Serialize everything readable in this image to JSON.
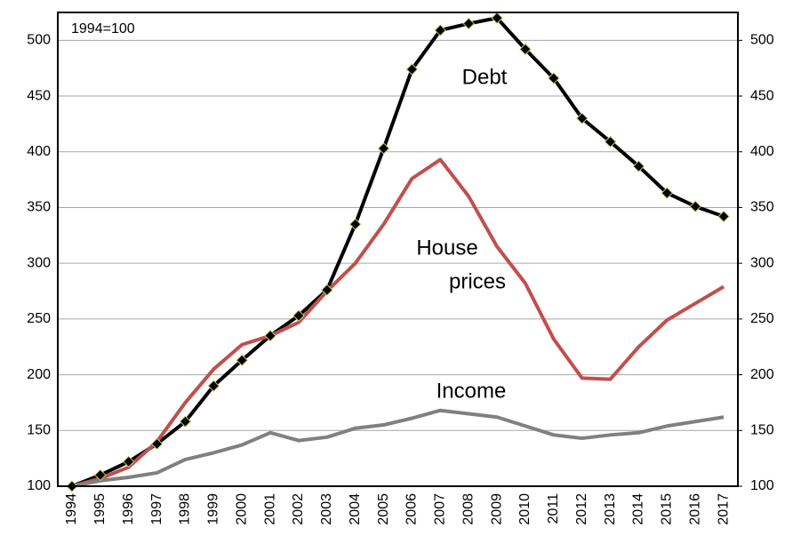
{
  "chart_data": {
    "type": "line",
    "categories": [
      "1994",
      "1995",
      "1996",
      "1997",
      "1998",
      "1999",
      "2000",
      "2001",
      "2002",
      "2003",
      "2004",
      "2005",
      "2006",
      "2007",
      "2008",
      "2009",
      "2010",
      "2011",
      "2012",
      "2013",
      "2014",
      "2015",
      "2016",
      "2017"
    ],
    "series": [
      {
        "name": "Debt",
        "color": "#000000",
        "marker": "diamond",
        "values": [
          100,
          110,
          122,
          138,
          158,
          190,
          213,
          235,
          253,
          276,
          335,
          403,
          474,
          509,
          515,
          520,
          492,
          466,
          430,
          409,
          387,
          363,
          351,
          342
        ]
      },
      {
        "name": "House prices",
        "color": "#c0504d",
        "values": [
          100,
          107,
          117,
          140,
          175,
          205,
          227,
          235,
          247,
          275,
          300,
          335,
          376,
          393,
          360,
          315,
          282,
          232,
          197,
          196,
          225,
          249,
          264,
          279
        ]
      },
      {
        "name": "Income",
        "color": "#808080",
        "values": [
          100,
          105,
          108,
          112,
          124,
          130,
          137,
          148,
          141,
          144,
          152,
          155,
          161,
          168,
          165,
          162,
          154,
          146,
          143,
          146,
          148,
          154,
          158,
          162
        ]
      }
    ],
    "ylim": [
      100,
      525
    ],
    "yticks": [
      100,
      150,
      200,
      250,
      300,
      350,
      400,
      450,
      500
    ],
    "y2lim": [
      100,
      525
    ],
    "y2ticks": [
      100,
      150,
      200,
      250,
      300,
      350,
      400,
      450,
      500
    ],
    "grid": true,
    "annotations": [
      "1994=100",
      "Debt",
      "House",
      "prices",
      "Income"
    ]
  }
}
